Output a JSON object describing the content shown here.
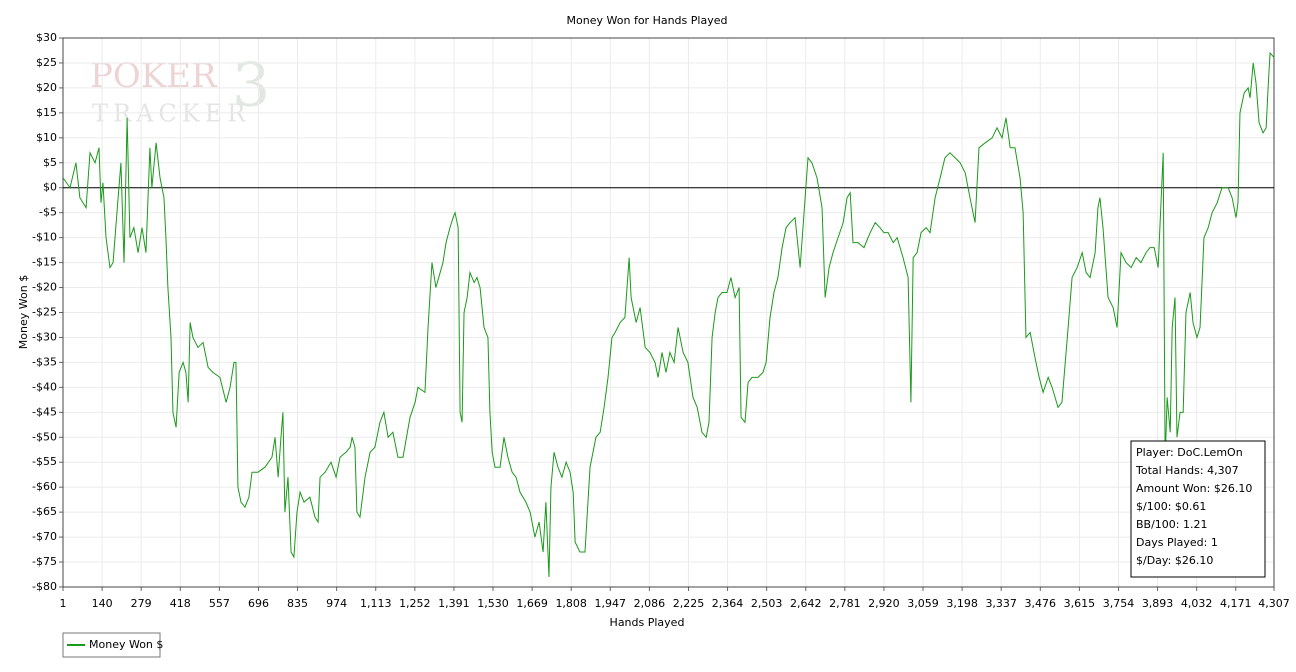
{
  "chart_data": {
    "type": "line",
    "title": "Money Won for Hands Played",
    "x_label": "Hands Played",
    "y_label": "Money Won $",
    "watermark": [
      "POKER",
      "TRACKER",
      "3"
    ],
    "legend": "bottom-left",
    "grid": true,
    "xlim": [
      1,
      4307
    ],
    "ylim": [
      -80,
      30
    ],
    "xticks": [
      1,
      140,
      279,
      418,
      557,
      696,
      835,
      974,
      {
        "value": 1113,
        "label": "1,113"
      },
      {
        "value": 1252,
        "label": "1,252"
      },
      {
        "value": 1391,
        "label": "1,391"
      },
      {
        "value": 1530,
        "label": "1,530"
      },
      {
        "value": 1669,
        "label": "1,669"
      },
      {
        "value": 1808,
        "label": "1,808"
      },
      {
        "value": 1947,
        "label": "1,947"
      },
      {
        "value": 2086,
        "label": "2,086"
      },
      {
        "value": 2225,
        "label": "2,225"
      },
      {
        "value": 2364,
        "label": "2,364"
      },
      {
        "value": 2503,
        "label": "2,503"
      },
      {
        "value": 2642,
        "label": "2,642"
      },
      {
        "value": 2781,
        "label": "2,781"
      },
      {
        "value": 2920,
        "label": "2,920"
      },
      {
        "value": 3059,
        "label": "3,059"
      },
      {
        "value": 3198,
        "label": "3,198"
      },
      {
        "value": 3337,
        "label": "3,337"
      },
      {
        "value": 3476,
        "label": "3,476"
      },
      {
        "value": 3615,
        "label": "3,615"
      },
      {
        "value": 3754,
        "label": "3,754"
      },
      {
        "value": 3893,
        "label": "3,893"
      },
      {
        "value": 4032,
        "label": "4,032"
      },
      {
        "value": 4171,
        "label": "4,171"
      },
      {
        "value": 4307,
        "label": "4,307"
      }
    ],
    "yticks": [
      {
        "value": 30,
        "label": "$30"
      },
      {
        "value": 25,
        "label": "$25"
      },
      {
        "value": 20,
        "label": "$20"
      },
      {
        "value": 15,
        "label": "$15"
      },
      {
        "value": 10,
        "label": "$10"
      },
      {
        "value": 5,
        "label": "$5"
      },
      {
        "value": 0,
        "label": "$0"
      },
      {
        "value": -5,
        "label": "-$5"
      },
      {
        "value": -10,
        "label": "-$10"
      },
      {
        "value": -15,
        "label": "-$15"
      },
      {
        "value": -20,
        "label": "-$20"
      },
      {
        "value": -25,
        "label": "-$25"
      },
      {
        "value": -30,
        "label": "-$30"
      },
      {
        "value": -35,
        "label": "-$35"
      },
      {
        "value": -40,
        "label": "-$40"
      },
      {
        "value": -45,
        "label": "-$45"
      },
      {
        "value": -50,
        "label": "-$50"
      },
      {
        "value": -55,
        "label": "-$55"
      },
      {
        "value": -60,
        "label": "-$60"
      },
      {
        "value": -65,
        "label": "-$65"
      },
      {
        "value": -70,
        "label": "-$70"
      },
      {
        "value": -75,
        "label": "-$75"
      },
      {
        "value": -80,
        "label": "-$80"
      }
    ],
    "info_box": [
      "Player: DoC.LemOn",
      "Total Hands: 4,307",
      "Amount Won: $26.10",
      "$/100: $0.61",
      "BB/100: 1.21",
      "Days Played: 1",
      "$/Day: $26.10"
    ],
    "x": [
      1,
      26,
      47,
      61,
      83,
      97,
      115,
      129,
      136,
      143,
      154,
      168,
      179,
      197,
      207,
      218,
      229,
      239,
      253,
      268,
      282,
      296,
      310,
      317,
      332,
      346,
      360,
      367,
      374,
      385,
      392,
      403,
      414,
      428,
      438,
      446,
      453,
      463,
      481,
      499,
      517,
      534,
      559,
      581,
      595,
      609,
      616,
      623,
      634,
      648,
      662,
      673,
      694,
      719,
      744,
      755,
      766,
      776,
      783,
      790,
      801,
      812,
      822,
      833,
      844,
      858,
      879,
      897,
      908,
      915,
      933,
      954,
      972,
      986,
      1007,
      1022,
      1029,
      1039,
      1046,
      1057,
      1075,
      1093,
      1110,
      1128,
      1142,
      1157,
      1174,
      1192,
      1210,
      1235,
      1253,
      1263,
      1288,
      1299,
      1313,
      1327,
      1342,
      1352,
      1363,
      1377,
      1388,
      1395,
      1406,
      1413,
      1420,
      1427,
      1438,
      1448,
      1463,
      1473,
      1484,
      1498,
      1512,
      1519,
      1527,
      1537,
      1555,
      1569,
      1583,
      1598,
      1612,
      1626,
      1647,
      1662,
      1679,
      1694,
      1708,
      1718,
      1729,
      1736,
      1747,
      1761,
      1775,
      1790,
      1804,
      1815,
      1822,
      1839,
      1857,
      1875,
      1896,
      1911,
      1925,
      1939,
      1953,
      1964,
      1982,
      1999,
      2014,
      2021,
      2039,
      2053,
      2071,
      2088,
      2106,
      2117,
      2131,
      2145,
      2159,
      2174,
      2188,
      2206,
      2223,
      2241,
      2256,
      2273,
      2288,
      2298,
      2309,
      2320,
      2330,
      2344,
      2362,
      2376,
      2391,
      2405,
      2412,
      2426,
      2437,
      2451,
      2472,
      2490,
      2501,
      2515,
      2529,
      2543,
      2558,
      2572,
      2586,
      2604,
      2622,
      2636,
      2650,
      2664,
      2682,
      2700,
      2711,
      2725,
      2739,
      2757,
      2775,
      2789,
      2800,
      2810,
      2828,
      2849,
      2871,
      2889,
      2906,
      2920,
      2935,
      2953,
      2967,
      2988,
      3006,
      3016,
      3024,
      3038,
      3052,
      3070,
      3084,
      3102,
      3120,
      3137,
      3155,
      3173,
      3191,
      3209,
      3226,
      3244,
      3258,
      3280,
      3305,
      3322,
      3340,
      3354,
      3369,
      3386,
      3404,
      3415,
      3425,
      3440,
      3457,
      3472,
      3486,
      3504,
      3518,
      3539,
      3553,
      3575,
      3589,
      3607,
      3625,
      3639,
      3653,
      3671,
      3681,
      3688,
      3699,
      3717,
      3735,
      3749,
      3763,
      3781,
      3799,
      3817,
      3834,
      3852,
      3866,
      3881,
      3895,
      3913,
      3920,
      3927,
      3938,
      3945,
      3955,
      3962,
      3973,
      3984,
      3994,
      4009,
      4019,
      4033,
      4044,
      4058,
      4073,
      4087,
      4105,
      4122,
      4144,
      4158,
      4172,
      4179,
      4186,
      4201,
      4215,
      4222,
      4233,
      4243,
      4254,
      4268,
      4279,
      4286,
      4293,
      4307
    ],
    "series": [
      {
        "name": "Money Won $",
        "color": "#1a9a1a",
        "values": [
          2,
          0,
          5,
          -2,
          -4,
          7,
          5,
          8,
          -3,
          1,
          -10,
          -16,
          -15,
          -2,
          5,
          -15,
          14,
          -10,
          -8,
          -13,
          -8,
          -13,
          8,
          0,
          9,
          2,
          -2,
          -10,
          -20,
          -30,
          -45,
          -48,
          -37,
          -35,
          -37,
          -43,
          -27,
          -30,
          -32,
          -31,
          -36,
          -37,
          -38,
          -43,
          -40,
          -35,
          -35,
          -60,
          -63,
          -64,
          -62,
          -57,
          -57,
          -56,
          -54,
          -50,
          -58,
          -50,
          -45,
          -65,
          -58,
          -73,
          -74,
          -65,
          -61,
          -63,
          -62,
          -66,
          -67,
          -58,
          -57,
          -55,
          -58,
          -54,
          -53,
          -52,
          -50,
          -52,
          -65,
          -66,
          -58,
          -53,
          -52,
          -47,
          -45,
          -50,
          -49,
          -54,
          -54,
          -46,
          -43,
          -40,
          -41,
          -28,
          -15,
          -20,
          -17,
          -15,
          -11,
          -8,
          -6,
          -5,
          -8,
          -45,
          -47,
          -25,
          -22,
          -17,
          -19,
          -18,
          -20,
          -28,
          -30,
          -45,
          -53,
          -56,
          -56,
          -50,
          -54,
          -57,
          -58,
          -61,
          -63,
          -65,
          -70,
          -67,
          -73,
          -63,
          -78,
          -60,
          -53,
          -56,
          -58,
          -55,
          -57,
          -61,
          -71,
          -73,
          -73,
          -56,
          -50,
          -49,
          -44,
          -38,
          -30,
          -29,
          -27,
          -26,
          -14,
          -22,
          -27,
          -24,
          -32,
          -33,
          -35,
          -38,
          -33,
          -37,
          -33,
          -35,
          -28,
          -33,
          -35,
          -42,
          -44,
          -49,
          -50,
          -47,
          -30,
          -25,
          -22,
          -21,
          -21,
          -18,
          -22,
          -20,
          -46,
          -47,
          -39,
          -38,
          -38,
          -37,
          -35,
          -26,
          -21,
          -18,
          -12,
          -8,
          -7,
          -6,
          -16,
          -5,
          6,
          5,
          2,
          -4,
          -22,
          -16,
          -13,
          -10,
          -7,
          -2,
          -1,
          -11,
          -11,
          -12,
          -9,
          -7,
          -8,
          -9,
          -9,
          -11,
          -10,
          -14,
          -18,
          -43,
          -14,
          -13,
          -9,
          -8,
          -9,
          -2,
          2,
          6,
          7,
          6,
          5,
          3,
          -2,
          -7,
          8,
          9,
          10,
          12,
          10,
          14,
          8,
          8,
          2,
          -5,
          -30,
          -29,
          -34,
          -38,
          -41,
          -38,
          -40,
          -44,
          -43,
          -28,
          -18,
          -16,
          -13,
          -17,
          -18,
          -13,
          -4,
          -2,
          -8,
          -22,
          -24,
          -28,
          -13,
          -15,
          -16,
          -14,
          -15,
          -13,
          -12,
          -12,
          -16,
          7,
          -55,
          -42,
          -49,
          -28,
          -22,
          -50,
          -45,
          -45,
          -25,
          -21,
          -27,
          -30,
          -28,
          -10,
          -8,
          -5,
          -3,
          0,
          0,
          -2,
          -6,
          -3,
          15,
          19,
          20,
          18,
          25,
          21,
          13,
          11,
          12,
          20,
          27,
          26.1
        ]
      }
    ]
  }
}
